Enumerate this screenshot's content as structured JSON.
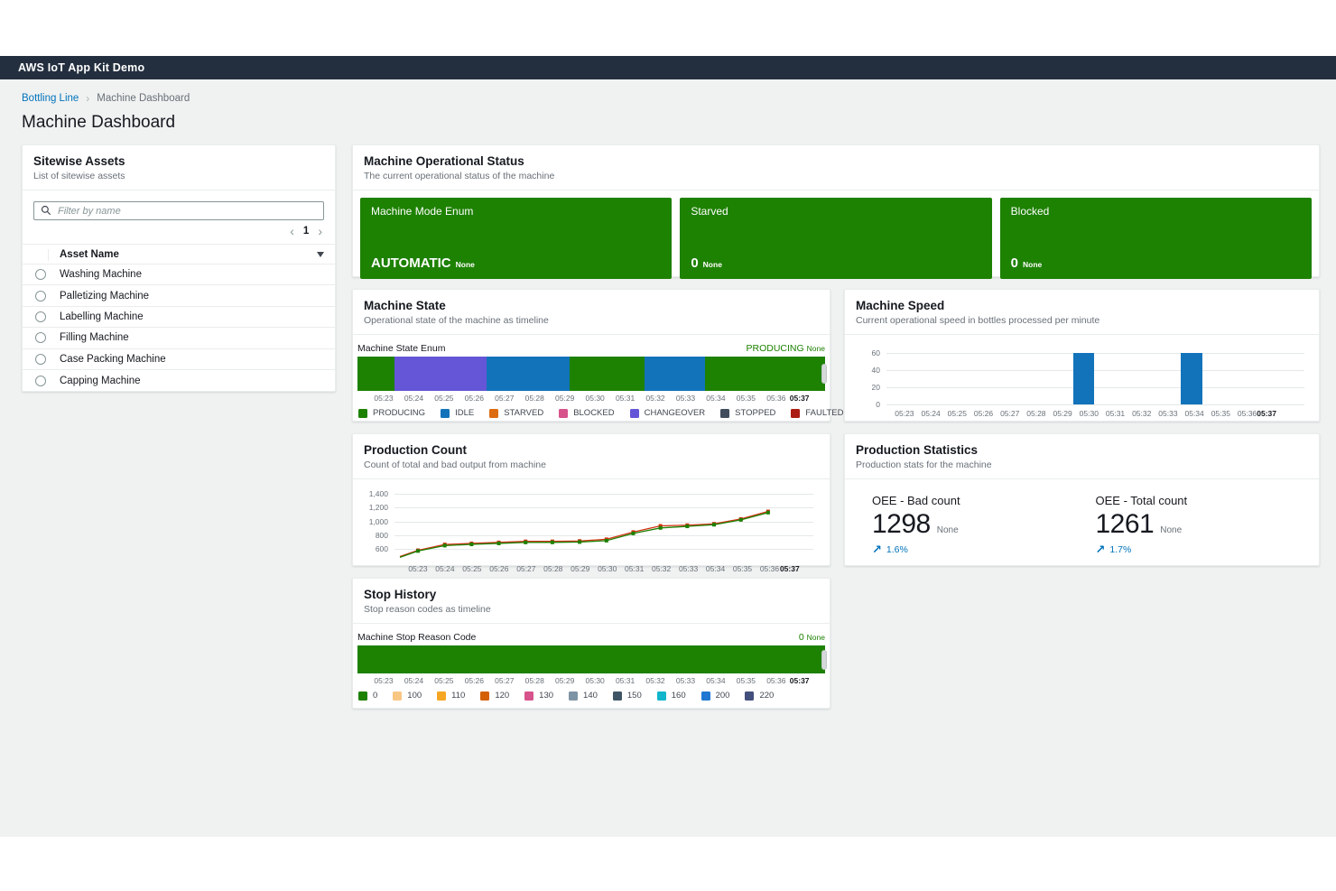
{
  "app": {
    "title": "AWS IoT App Kit Demo"
  },
  "breadcrumb": {
    "parent": "Bottling Line",
    "separator": "›",
    "current": "Machine Dashboard"
  },
  "page": {
    "title": "Machine Dashboard"
  },
  "colors": {
    "header_bg": "#232f3e",
    "link": "#0073bb",
    "green": "#1d8102",
    "blue": "#1273bb",
    "red": "#d13212",
    "text": "#16191f",
    "subtext": "#687078",
    "content_bg": "#f0f1f1"
  },
  "sidebar": {
    "title": "Sitewise Assets",
    "subtitle": "List of sitewise assets",
    "filter_placeholder": "Filter by name",
    "pagination": {
      "prev": "‹",
      "page": "1",
      "next": "›"
    },
    "table_header": "Asset Name",
    "assets": [
      "Washing Machine",
      "Palletizing Machine",
      "Labelling Machine",
      "Filling Machine",
      "Case Packing Machine",
      "Capping Machine"
    ]
  },
  "operational_status": {
    "title": "Machine Operational Status",
    "subtitle": "The current operational status of the machine",
    "tiles": [
      {
        "label": "Machine Mode Enum",
        "value": "AUTOMATIC",
        "unit": "None"
      },
      {
        "label": "Starved",
        "value": "0",
        "unit": "None"
      },
      {
        "label": "Blocked",
        "value": "0",
        "unit": "None"
      }
    ]
  },
  "machine_state": {
    "title": "Machine State",
    "subtitle": "Operational state of the machine as timeline",
    "property_label": "Machine State Enum",
    "current_value": "PRODUCING",
    "current_unit": "None"
  },
  "machine_speed": {
    "title": "Machine Speed",
    "subtitle": "Current operational speed in bottles processed per minute"
  },
  "production_count": {
    "title": "Production Count",
    "subtitle": "Count of total and bad output from machine"
  },
  "production_statistics": {
    "title": "Production Statistics",
    "subtitle": "Production stats for the machine",
    "kpis": [
      {
        "name": "OEE - Bad count",
        "value": "1298",
        "unit": "None",
        "trend_icon": "↗",
        "trend": "1.6%"
      },
      {
        "name": "OEE - Total count",
        "value": "1261",
        "unit": "None",
        "trend_icon": "↗",
        "trend": "1.7%"
      }
    ]
  },
  "stop_history": {
    "title": "Stop History",
    "subtitle": "Stop reason codes as timeline",
    "property_label": "Machine Stop Reason Code",
    "current_value": "0",
    "current_unit": "None"
  },
  "time_ticks": [
    "05:23",
    "05:24",
    "05:25",
    "05:26",
    "05:27",
    "05:28",
    "05:29",
    "05:30",
    "05:31",
    "05:32",
    "05:33",
    "05:34",
    "05:35",
    "05:36",
    "05:37"
  ],
  "chart_data": [
    {
      "id": "machine-state",
      "type": "timeline",
      "title": "Machine State Enum",
      "x_range": [
        "05:22",
        "05:37.6"
      ],
      "segments": [
        {
          "state": "PRODUCING",
          "pct": 7.9
        },
        {
          "state": "CHANGEOVER",
          "pct": 19.8
        },
        {
          "state": "IDLE",
          "pct": 17.7
        },
        {
          "state": "PRODUCING",
          "pct": 16.0
        },
        {
          "state": "IDLE",
          "pct": 12.9
        },
        {
          "state": "PRODUCING",
          "pct": 25.7
        }
      ],
      "legend": [
        {
          "label": "PRODUCING",
          "color": "#1d8102"
        },
        {
          "label": "IDLE",
          "color": "#1273bb"
        },
        {
          "label": "STARVED",
          "color": "#dd6b10"
        },
        {
          "label": "BLOCKED",
          "color": "#d6538c"
        },
        {
          "label": "CHANGEOVER",
          "color": "#6456d7"
        },
        {
          "label": "STOPPED",
          "color": "#414d5c"
        },
        {
          "label": "FAULTED",
          "color": "#ab1d12"
        }
      ]
    },
    {
      "id": "machine-speed",
      "type": "bar",
      "ylim": [
        0,
        60
      ],
      "y_ticks": [
        0,
        20,
        40,
        60
      ],
      "bars": [
        {
          "time": "05:29.5",
          "value": 60,
          "x_pct": 44.7,
          "w_pct": 5.0
        },
        {
          "time": "05:33.5",
          "value": 60,
          "x_pct": 70.5,
          "w_pct": 5.0
        }
      ],
      "bar_color": "#1273bb"
    },
    {
      "id": "production-count",
      "type": "line",
      "ylim": [
        430,
        1480
      ],
      "y_ticks": [
        1400,
        1200,
        1000,
        800,
        600
      ],
      "y_tick_labels": [
        "1,400",
        "1,200",
        "1,000",
        "800",
        "600"
      ],
      "x_pct": [
        1.3,
        5.6,
        12.0,
        18.4,
        24.9,
        31.3,
        37.7,
        44.2,
        50.6,
        57.0,
        63.5,
        69.9,
        76.3,
        82.7,
        89.2
      ],
      "series": [
        {
          "name": "OEE - Bad count",
          "color": "#d13212",
          "values": [
            490,
            580,
            665,
            680,
            695,
            710,
            710,
            715,
            740,
            845,
            935,
            945,
            965,
            1035,
            1145
          ]
        },
        {
          "name": "OEE - Total count",
          "color": "#1d8102",
          "values": [
            478,
            570,
            648,
            666,
            680,
            694,
            695,
            700,
            720,
            825,
            905,
            928,
            952,
            1022,
            1128
          ]
        }
      ]
    },
    {
      "id": "stop-history",
      "type": "timeline",
      "title": "Machine Stop Reason Code",
      "segments": [
        {
          "state": "0",
          "pct": 100
        }
      ],
      "legend": [
        {
          "label": "0",
          "color": "#1d8102"
        },
        {
          "label": "100",
          "color": "#f9c784"
        },
        {
          "label": "110",
          "color": "#f5a623"
        },
        {
          "label": "120",
          "color": "#d45f07"
        },
        {
          "label": "130",
          "color": "#d6538c"
        },
        {
          "label": "140",
          "color": "#7d94a5"
        },
        {
          "label": "150",
          "color": "#3f5566"
        },
        {
          "label": "160",
          "color": "#12b5cb"
        },
        {
          "label": "200",
          "color": "#1f78d1"
        },
        {
          "label": "220",
          "color": "#434f7c"
        }
      ]
    }
  ]
}
